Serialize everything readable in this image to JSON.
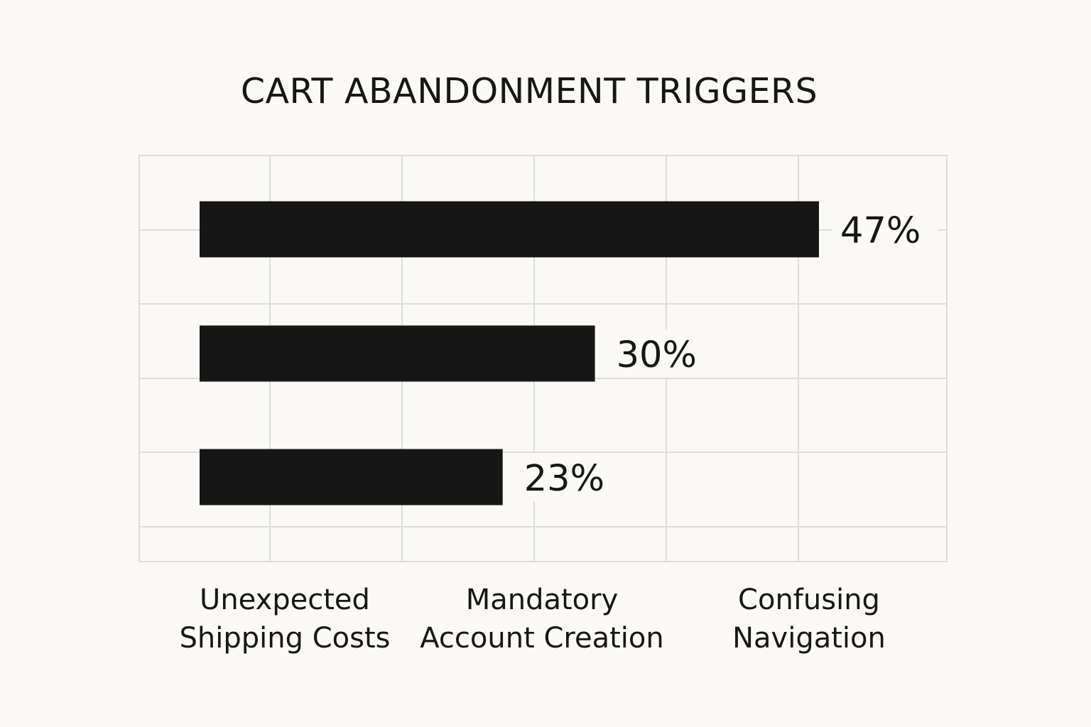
{
  "chart_data": {
    "type": "bar",
    "orientation": "horizontal",
    "title": "CART ABANDONMENT TRIGGERS",
    "xlabel": "",
    "ylabel": "",
    "categories": [
      "Unexpected Shipping Costs",
      "Mandatory Account Creation",
      "Confusing Navigation"
    ],
    "category_lines": [
      [
        "Unexpected",
        "Shipping Costs"
      ],
      [
        "Mandatory",
        "Account Creation"
      ],
      [
        "Confusing",
        "Navigation"
      ]
    ],
    "values": [
      47,
      30,
      23
    ],
    "value_labels": [
      "47%",
      "30%",
      "23%"
    ],
    "xlim": [
      0,
      50
    ],
    "grid": true,
    "legend": "none",
    "colors": {
      "bar": "#161616",
      "grid": "#dcdcdc",
      "background": "#faf9f6",
      "text": "#161616"
    }
  }
}
